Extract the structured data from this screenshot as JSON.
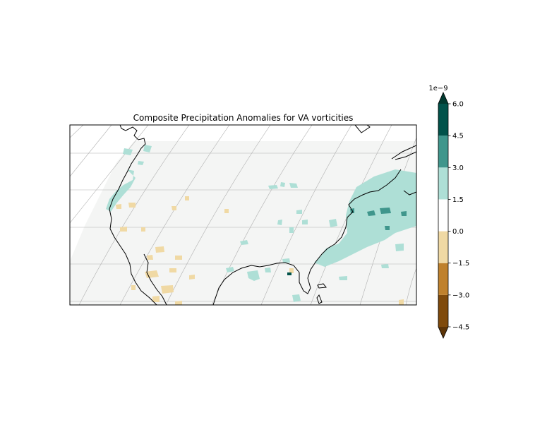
{
  "map": {
    "title": "Composite Precipitation Anomalies for VA vorticities"
  },
  "colorbar": {
    "scale_label": "1e−9",
    "extend": "both",
    "orientation": "vertical",
    "bounds": [
      -4.5,
      -3.0,
      -1.5,
      0.0,
      1.5,
      3.0,
      4.5,
      6.0
    ],
    "tick_labels": [
      "−4.5",
      "−3.0",
      "−1.5",
      "0.0",
      "1.5",
      "3.0",
      "4.5",
      "6.0"
    ],
    "colors": [
      "#7f4a0b",
      "#bf812d",
      "#f0d9a4",
      "#ffffff",
      "#aedfd6",
      "#3f968c",
      "#01524a"
    ],
    "under_color": "#5c3407",
    "over_color": "#01392f"
  },
  "colors": {
    "ocean_background": "#f4f5f4",
    "gridline": "#b0b0b0",
    "coastline": "#000000"
  }
}
